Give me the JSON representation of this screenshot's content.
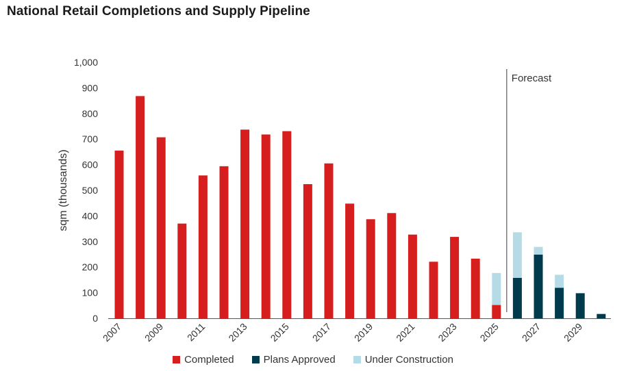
{
  "title": "National Retail Completions and Supply Pipeline",
  "colors": {
    "completed": "#d71e1e",
    "plans_approved": "#003a4d",
    "under_construction": "#b5dce6",
    "axis": "#555555",
    "forecast_line": "#666666"
  },
  "chart_data": {
    "type": "bar",
    "stacked": true,
    "title": "National Retail Completions and Supply Pipeline",
    "xlabel": "",
    "ylabel": "sqm (thousands)",
    "ylim": [
      0,
      1000
    ],
    "yticks": [
      "0",
      "100",
      "200",
      "300",
      "400",
      "500",
      "600",
      "700",
      "800",
      "900",
      "1,000"
    ],
    "yticks_values": [
      0,
      100,
      200,
      300,
      400,
      500,
      600,
      700,
      800,
      900,
      1000
    ],
    "categories": [
      2007,
      2008,
      2009,
      2010,
      2011,
      2012,
      2013,
      2014,
      2015,
      2016,
      2017,
      2018,
      2019,
      2020,
      2021,
      2022,
      2023,
      2024,
      2025,
      2026,
      2027,
      2028,
      2029,
      2030
    ],
    "xtick_labels": [
      "2007",
      "",
      "2009",
      "",
      "2011",
      "",
      "2013",
      "",
      "2015",
      "",
      "2017",
      "",
      "2019",
      "",
      "2021",
      "",
      "2023",
      "",
      "2025",
      "",
      "2027",
      "",
      "2029",
      ""
    ],
    "series": [
      {
        "name": "Completed",
        "values": [
          655,
          868,
          707,
          370,
          558,
          594,
          737,
          718,
          731,
          524,
          605,
          448,
          387,
          411,
          327,
          221,
          318,
          233,
          52,
          0,
          0,
          0,
          0,
          0
        ]
      },
      {
        "name": "Plans Approved",
        "values": [
          0,
          0,
          0,
          0,
          0,
          0,
          0,
          0,
          0,
          0,
          0,
          0,
          0,
          0,
          0,
          0,
          0,
          0,
          0,
          158,
          249,
          119,
          98,
          17
        ]
      },
      {
        "name": "Under Construction",
        "values": [
          0,
          0,
          0,
          0,
          0,
          0,
          0,
          0,
          0,
          0,
          0,
          0,
          0,
          0,
          0,
          0,
          0,
          0,
          125,
          178,
          30,
          51,
          0,
          0
        ]
      }
    ],
    "annotation": {
      "text": "Forecast",
      "after_category": 2025
    },
    "grid": false,
    "legend_position": "bottom"
  }
}
